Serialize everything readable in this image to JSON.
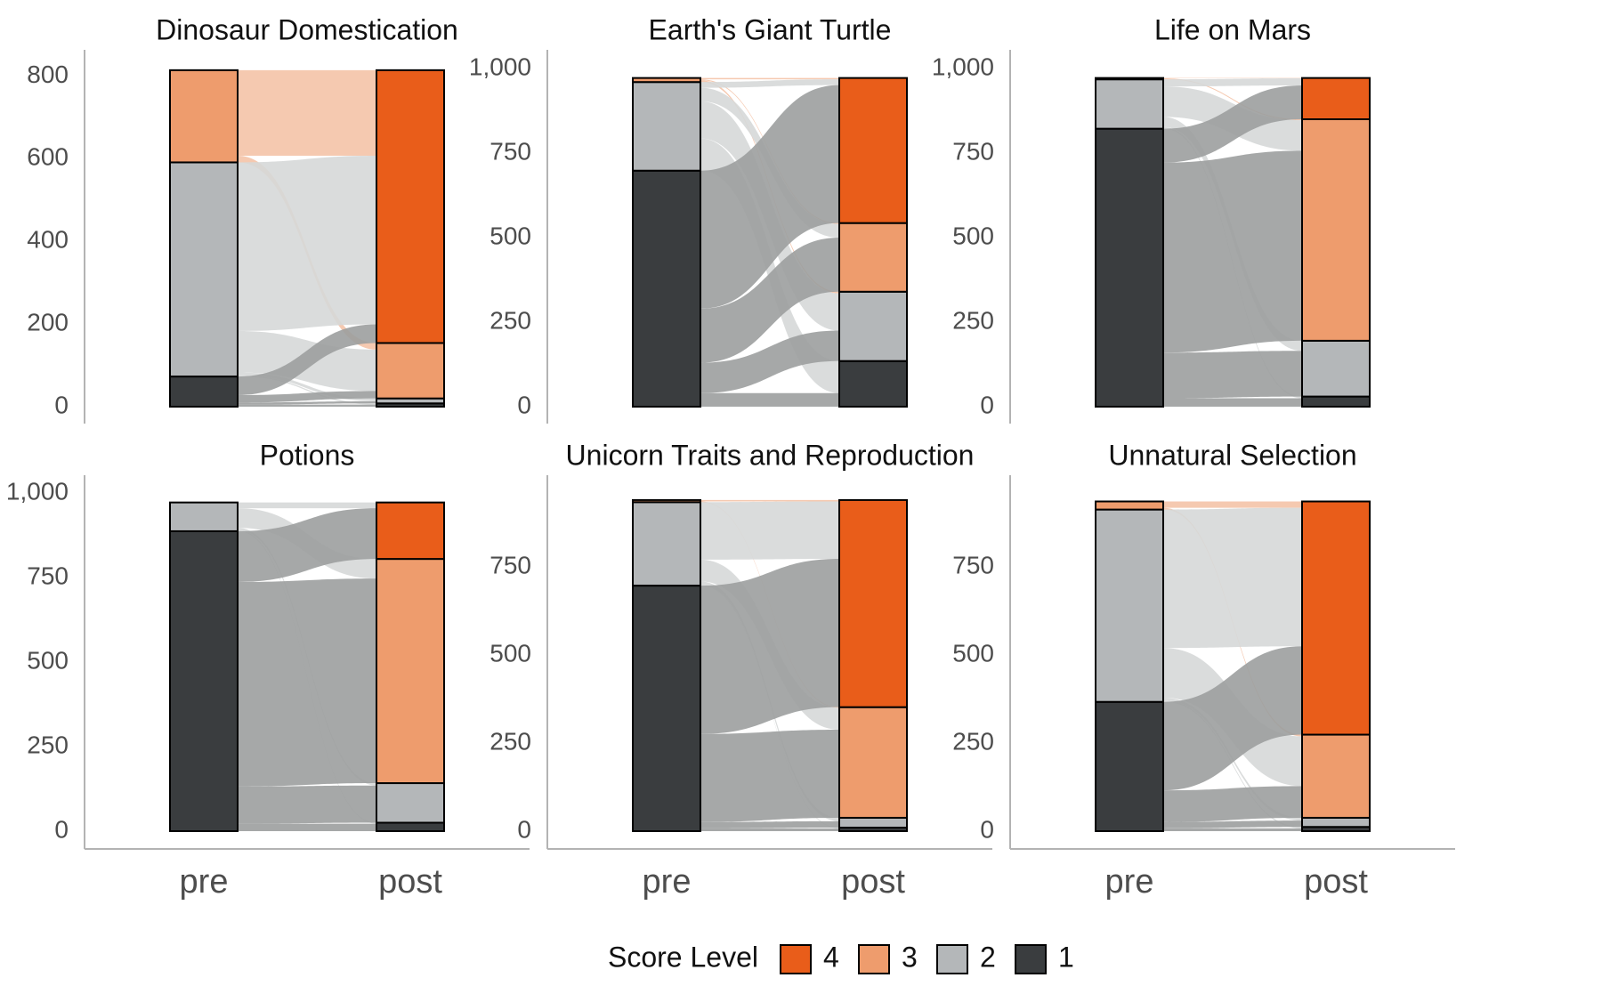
{
  "chart_data": {
    "type": "alluvial",
    "layout": "3x2 facets",
    "x_categories": [
      "pre",
      "post"
    ],
    "legend": {
      "title": "Score Level",
      "position": "bottom",
      "levels": [
        "4",
        "3",
        "2",
        "1"
      ]
    },
    "colors": {
      "4": "#E95D1A",
      "3": "#EE9C6D",
      "2": "#B4B7B9",
      "1": "#3A3D3F",
      "flow_from_3": "#F4C3A7",
      "flow_from_2": "#D6D8D8",
      "flow_from_1": "#9C9E9E",
      "axis": "#b3b3b3"
    },
    "panels": [
      {
        "title": "Dinosaur Domestication",
        "ylim": [
          0,
          818
        ],
        "y_ticks": [
          0,
          200,
          400,
          600,
          800
        ],
        "y_tick_labels": [
          "0",
          "200",
          "400",
          "600",
          "800"
        ],
        "pre": [
          {
            "level": "1",
            "value": 73
          },
          {
            "level": "2",
            "value": 518
          },
          {
            "level": "3",
            "value": 223
          }
        ],
        "post": [
          {
            "level": "1",
            "value": 8
          },
          {
            "level": "2",
            "value": 12
          },
          {
            "level": "3",
            "value": 134
          },
          {
            "level": "4",
            "value": 660
          }
        ],
        "flows": [
          {
            "from": "1",
            "to": "1",
            "value": 5
          },
          {
            "from": "1",
            "to": "2",
            "value": 5
          },
          {
            "from": "1",
            "to": "3",
            "value": 18
          },
          {
            "from": "1",
            "to": "4",
            "value": 45
          },
          {
            "from": "2",
            "to": "1",
            "value": 3
          },
          {
            "from": "2",
            "to": "2",
            "value": 7
          },
          {
            "from": "2",
            "to": "3",
            "value": 100
          },
          {
            "from": "2",
            "to": "4",
            "value": 408
          },
          {
            "from": "3",
            "to": "3",
            "value": 16
          },
          {
            "from": "3",
            "to": "4",
            "value": 207
          }
        ]
      },
      {
        "title": "Earth's Giant Turtle",
        "ylim": [
          0,
          1000
        ],
        "y_ticks": [
          0,
          250,
          500,
          750,
          1000
        ],
        "y_tick_labels": [
          "0",
          "250",
          "500",
          "750",
          "1,000"
        ],
        "pre": [
          {
            "level": "1",
            "value": 698
          },
          {
            "level": "2",
            "value": 262
          },
          {
            "level": "3",
            "value": 12
          }
        ],
        "post": [
          {
            "level": "1",
            "value": 135
          },
          {
            "level": "2",
            "value": 205
          },
          {
            "level": "3",
            "value": 203
          },
          {
            "level": "4",
            "value": 429
          }
        ],
        "flows": [
          {
            "from": "1",
            "to": "1",
            "value": 40
          },
          {
            "from": "1",
            "to": "2",
            "value": 90
          },
          {
            "from": "1",
            "to": "3",
            "value": 160
          },
          {
            "from": "1",
            "to": "4",
            "value": 408
          },
          {
            "from": "2",
            "to": "1",
            "value": 95
          },
          {
            "from": "2",
            "to": "2",
            "value": 110
          },
          {
            "from": "2",
            "to": "3",
            "value": 40
          },
          {
            "from": "2",
            "to": "4",
            "value": 17
          },
          {
            "from": "3",
            "to": "3",
            "value": 3
          },
          {
            "from": "3",
            "to": "4",
            "value": 4
          },
          {
            "from": "3",
            "to": "2",
            "value": 5
          }
        ]
      },
      {
        "title": "Life on Mars",
        "ylim": [
          0,
          1000
        ],
        "y_ticks": [
          0,
          250,
          500,
          750,
          1000
        ],
        "y_tick_labels": [
          "0",
          "250",
          "500",
          "750",
          "1,000"
        ],
        "pre": [
          {
            "level": "1",
            "value": 822
          },
          {
            "level": "2",
            "value": 146
          },
          {
            "level": "3",
            "value": 4
          }
        ],
        "post": [
          {
            "level": "1",
            "value": 30
          },
          {
            "level": "2",
            "value": 165
          },
          {
            "level": "3",
            "value": 655
          },
          {
            "level": "4",
            "value": 122
          }
        ],
        "flows": [
          {
            "from": "1",
            "to": "1",
            "value": 25
          },
          {
            "from": "1",
            "to": "2",
            "value": 135
          },
          {
            "from": "1",
            "to": "3",
            "value": 562
          },
          {
            "from": "1",
            "to": "4",
            "value": 100
          },
          {
            "from": "2",
            "to": "1",
            "value": 5
          },
          {
            "from": "2",
            "to": "2",
            "value": 30
          },
          {
            "from": "2",
            "to": "3",
            "value": 90
          },
          {
            "from": "2",
            "to": "4",
            "value": 21
          },
          {
            "from": "3",
            "to": "3",
            "value": 3
          },
          {
            "from": "3",
            "to": "4",
            "value": 1
          }
        ]
      },
      {
        "title": "Potions",
        "ylim": [
          0,
          1000
        ],
        "y_ticks": [
          0,
          250,
          500,
          750,
          1000
        ],
        "y_tick_labels": [
          "0",
          "250",
          "500",
          "750",
          "1,000"
        ],
        "pre": [
          {
            "level": "1",
            "value": 887
          },
          {
            "level": "2",
            "value": 85
          }
        ],
        "post": [
          {
            "level": "1",
            "value": 25
          },
          {
            "level": "2",
            "value": 117
          },
          {
            "level": "3",
            "value": 663
          },
          {
            "level": "4",
            "value": 167
          }
        ],
        "flows": [
          {
            "from": "1",
            "to": "1",
            "value": 22
          },
          {
            "from": "1",
            "to": "2",
            "value": 110
          },
          {
            "from": "1",
            "to": "3",
            "value": 605
          },
          {
            "from": "1",
            "to": "4",
            "value": 150
          },
          {
            "from": "2",
            "to": "1",
            "value": 3
          },
          {
            "from": "2",
            "to": "2",
            "value": 7
          },
          {
            "from": "2",
            "to": "3",
            "value": 58
          },
          {
            "from": "2",
            "to": "4",
            "value": 17
          }
        ]
      },
      {
        "title": "Unicorn Traits and Reproduction",
        "ylim": [
          0,
          960
        ],
        "y_ticks": [
          0,
          250,
          500,
          750
        ],
        "y_tick_labels": [
          "0",
          "250",
          "500",
          "750"
        ],
        "pre": [
          {
            "level": "1",
            "value": 697
          },
          {
            "level": "2",
            "value": 237
          },
          {
            "level": "3",
            "value": 6
          }
        ],
        "post": [
          {
            "level": "1",
            "value": 10
          },
          {
            "level": "2",
            "value": 28
          },
          {
            "level": "3",
            "value": 314
          },
          {
            "level": "4",
            "value": 588
          }
        ],
        "flows": [
          {
            "from": "1",
            "to": "1",
            "value": 8
          },
          {
            "from": "1",
            "to": "2",
            "value": 18
          },
          {
            "from": "1",
            "to": "3",
            "value": 250
          },
          {
            "from": "1",
            "to": "4",
            "value": 421
          },
          {
            "from": "2",
            "to": "1",
            "value": 2
          },
          {
            "from": "2",
            "to": "2",
            "value": 10
          },
          {
            "from": "2",
            "to": "3",
            "value": 62
          },
          {
            "from": "2",
            "to": "4",
            "value": 163
          },
          {
            "from": "3",
            "to": "3",
            "value": 2
          },
          {
            "from": "3",
            "to": "4",
            "value": 4
          }
        ]
      },
      {
        "title": "Unnatural Selection",
        "ylim": [
          0,
          960
        ],
        "y_ticks": [
          0,
          250,
          500,
          750
        ],
        "y_tick_labels": [
          "0",
          "250",
          "500",
          "750"
        ],
        "pre": [
          {
            "level": "1",
            "value": 367
          },
          {
            "level": "2",
            "value": 546
          },
          {
            "level": "3",
            "value": 23
          }
        ],
        "post": [
          {
            "level": "1",
            "value": 12
          },
          {
            "level": "2",
            "value": 26
          },
          {
            "level": "3",
            "value": 236
          },
          {
            "level": "4",
            "value": 662
          }
        ],
        "flows": [
          {
            "from": "1",
            "to": "1",
            "value": 8
          },
          {
            "from": "1",
            "to": "2",
            "value": 18
          },
          {
            "from": "1",
            "to": "3",
            "value": 90
          },
          {
            "from": "1",
            "to": "4",
            "value": 251
          },
          {
            "from": "2",
            "to": "1",
            "value": 4
          },
          {
            "from": "2",
            "to": "2",
            "value": 8
          },
          {
            "from": "2",
            "to": "3",
            "value": 141
          },
          {
            "from": "2",
            "to": "4",
            "value": 393
          },
          {
            "from": "3",
            "to": "3",
            "value": 5
          },
          {
            "from": "3",
            "to": "4",
            "value": 18
          }
        ]
      }
    ]
  }
}
